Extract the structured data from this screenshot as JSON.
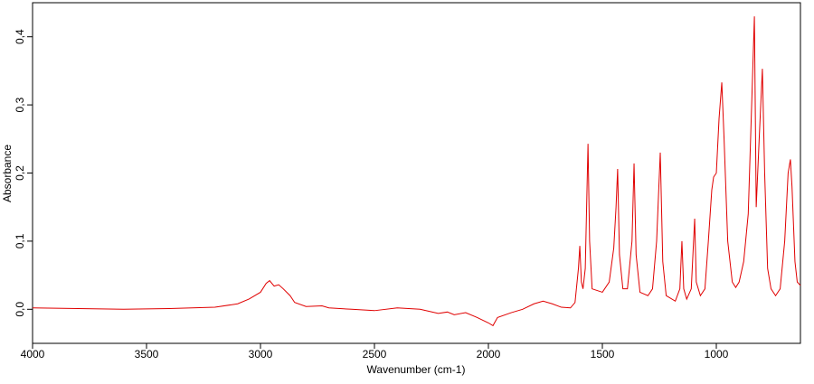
{
  "chart_data": {
    "type": "line",
    "xlabel": "Wavenumber (cm-1)",
    "ylabel": "Absorbance",
    "xlim": [
      4000,
      631
    ],
    "ylim": [
      -0.05,
      0.45
    ],
    "xticks": [
      4000,
      3500,
      3000,
      2500,
      2000,
      1500,
      1000
    ],
    "yticks": [
      {
        "value": 0,
        "label": "0,0"
      },
      {
        "value": 0.1,
        "label": "0,1"
      },
      {
        "value": 0.2,
        "label": "0,2"
      },
      {
        "value": 0.3,
        "label": "0,3"
      },
      {
        "value": 0.4,
        "label": "0,4"
      }
    ],
    "x": [
      4000,
      3800,
      3600,
      3400,
      3200,
      3100,
      3050,
      3000,
      2975,
      2960,
      2940,
      2920,
      2900,
      2870,
      2850,
      2800,
      2730,
      2700,
      2600,
      2500,
      2400,
      2300,
      2220,
      2180,
      2150,
      2100,
      2050,
      2000,
      1980,
      1960,
      1900,
      1850,
      1800,
      1760,
      1720,
      1680,
      1640,
      1620,
      1605,
      1599,
      1592,
      1585,
      1575,
      1563,
      1556,
      1545,
      1500,
      1470,
      1450,
      1440,
      1433,
      1425,
      1410,
      1390,
      1370,
      1361,
      1352,
      1335,
      1300,
      1280,
      1262,
      1246,
      1235,
      1220,
      1180,
      1160,
      1151,
      1143,
      1130,
      1110,
      1095,
      1088,
      1070,
      1050,
      1035,
      1020,
      1012,
      1000,
      988,
      976,
      966,
      950,
      930,
      915,
      900,
      880,
      860,
      845,
      833,
      825,
      812,
      798,
      788,
      775,
      760,
      740,
      720,
      700,
      685,
      675,
      668,
      655,
      645,
      631
    ],
    "series": [
      {
        "color": "#e00000",
        "values": [
          0.002,
          0.001,
          0.0,
          0.001,
          0.003,
          0.008,
          0.015,
          0.025,
          0.038,
          0.042,
          0.034,
          0.036,
          0.03,
          0.02,
          0.01,
          0.004,
          0.005,
          0.002,
          0.0,
          -0.002,
          0.002,
          0.0,
          -0.006,
          -0.004,
          -0.008,
          -0.005,
          -0.012,
          -0.02,
          -0.024,
          -0.012,
          -0.005,
          0.0,
          0.008,
          0.012,
          0.008,
          0.003,
          0.002,
          0.01,
          0.06,
          0.093,
          0.04,
          0.03,
          0.06,
          0.243,
          0.1,
          0.03,
          0.025,
          0.04,
          0.09,
          0.15,
          0.206,
          0.08,
          0.03,
          0.03,
          0.1,
          0.214,
          0.08,
          0.025,
          0.02,
          0.03,
          0.1,
          0.23,
          0.07,
          0.02,
          0.012,
          0.03,
          0.1,
          0.03,
          0.015,
          0.03,
          0.133,
          0.04,
          0.02,
          0.03,
          0.1,
          0.175,
          0.194,
          0.2,
          0.28,
          0.333,
          0.25,
          0.1,
          0.04,
          0.032,
          0.04,
          0.07,
          0.14,
          0.3,
          0.43,
          0.15,
          0.25,
          0.353,
          0.2,
          0.06,
          0.03,
          0.02,
          0.03,
          0.1,
          0.2,
          0.22,
          0.18,
          0.07,
          0.04,
          0.035
        ]
      }
    ]
  }
}
